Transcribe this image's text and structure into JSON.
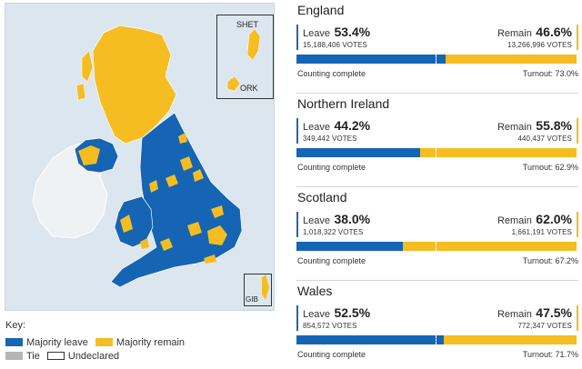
{
  "colors": {
    "leave": "#1565b4",
    "remain": "#f5bd22",
    "tie": "#b5b5b5",
    "sea": "#dce6ee",
    "ireland": "#eef2f5"
  },
  "map": {
    "inset_shetland": "SHET",
    "inset_orkney": "ORK",
    "inset_gibraltar": "GIB"
  },
  "key": {
    "title": "Key:",
    "leave": "Majority leave",
    "remain": "Majority remain",
    "tie": "Tie",
    "undeclared": "Undeclared"
  },
  "regions": [
    {
      "name": "England",
      "leave_label": "Leave",
      "leave_pct": "53.4%",
      "leave_votes": "15,188,406 VOTES",
      "remain_label": "Remain",
      "remain_pct": "46.6%",
      "remain_votes": "13,266,996 VOTES",
      "leave_fraction": 0.534,
      "status": "Counting complete",
      "turnout": "Turnout: 73.0%"
    },
    {
      "name": "Northern Ireland",
      "leave_label": "Leave",
      "leave_pct": "44.2%",
      "leave_votes": "349,442 VOTES",
      "remain_label": "Remain",
      "remain_pct": "55.8%",
      "remain_votes": "440,437 VOTES",
      "leave_fraction": 0.442,
      "status": "Counting complete",
      "turnout": "Turnout: 62.9%"
    },
    {
      "name": "Scotland",
      "leave_label": "Leave",
      "leave_pct": "38.0%",
      "leave_votes": "1,018,322 VOTES",
      "remain_label": "Remain",
      "remain_pct": "62.0%",
      "remain_votes": "1,661,191 VOTES",
      "leave_fraction": 0.38,
      "status": "Counting complete",
      "turnout": "Turnout: 67.2%"
    },
    {
      "name": "Wales",
      "leave_label": "Leave",
      "leave_pct": "52.5%",
      "leave_votes": "854,572 VOTES",
      "remain_label": "Remain",
      "remain_pct": "47.5%",
      "remain_votes": "772,347 VOTES",
      "leave_fraction": 0.525,
      "status": "Counting complete",
      "turnout": "Turnout: 71.7%"
    }
  ]
}
